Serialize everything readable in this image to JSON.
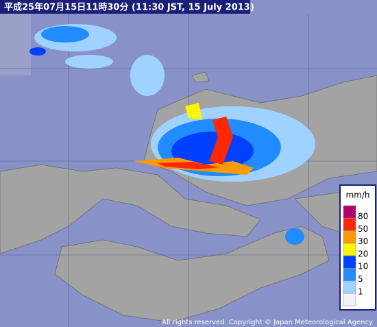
{
  "header": {
    "title": "平成25年07月15日11時30分  (11:30 JST, 15 July 2013)"
  },
  "legend": {
    "unit": "mm/h",
    "levels": [
      {
        "label": "80",
        "color": "#b4006a"
      },
      {
        "label": "50",
        "color": "#ff2800"
      },
      {
        "label": "30",
        "color": "#ff9900"
      },
      {
        "label": "20",
        "color": "#faf500"
      },
      {
        "label": "10",
        "color": "#0041ff"
      },
      {
        "label": "5",
        "color": "#218cff"
      },
      {
        "label": "1",
        "color": "#a0d2ff"
      }
    ]
  },
  "footer": {
    "copyright": "All rights reserved. Copyright © Japan Meteorological Agency"
  }
}
